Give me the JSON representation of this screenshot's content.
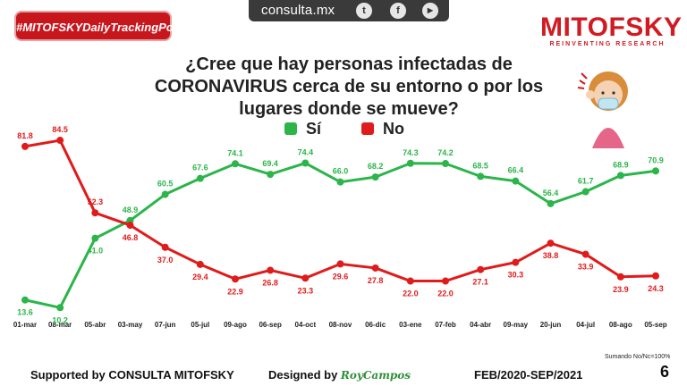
{
  "topbar": {
    "site": "consulta.mx",
    "icons": [
      "twitter-icon",
      "facebook-icon",
      "youtube-icon"
    ],
    "tw": "t",
    "fb": "f",
    "yt": "▶"
  },
  "badge": {
    "label": "#MITOFSKYDailyTrackingPoll"
  },
  "brand": {
    "name": "MITOFSKY",
    "tagline": "REINVENTING RESEARCH"
  },
  "colors": {
    "si": "#2bb54a",
    "no": "#e01b1b",
    "accent": "#c8161d"
  },
  "footer": {
    "supported": "Supported by   CONSULTA   MITOFSKY",
    "designed_prefix": "Designed by",
    "designer": "RoyCampos",
    "period": "FEB/2020-SEP/2021"
  },
  "note": "Sumando No/Nc=100%",
  "page_number": "6",
  "chart_data": {
    "type": "line",
    "title": "¿Cree que hay personas infectadas de CORONAVIRUS cerca de su entorno o por los lugares donde se mueve?",
    "categories": [
      "01-mar",
      "08-mar",
      "05-abr",
      "03-may",
      "07-jun",
      "05-jul",
      "09-ago",
      "06-sep",
      "04-oct",
      "08-nov",
      "06-dic",
      "03-ene",
      "07-feb",
      "04-abr",
      "09-may",
      "20-jun",
      "04-jul",
      "08-ago",
      "05-sep"
    ],
    "series": [
      {
        "name": "Sí",
        "color": "#2bb54a",
        "values": [
          13.6,
          10.2,
          41.0,
          48.9,
          60.5,
          67.6,
          74.1,
          69.4,
          74.4,
          66.0,
          68.2,
          74.3,
          74.2,
          68.5,
          66.4,
          56.4,
          61.7,
          68.9,
          70.9
        ],
        "labels": [
          "13.6",
          "10.2",
          "41.0",
          "48.9",
          "60.5",
          "67.6",
          "74.1",
          "69.4",
          "74.4",
          "66.0",
          "68.2",
          "74.3",
          "74.2",
          "68.5",
          "66.4",
          "56.4",
          "61.7",
          "68.9",
          "70.9"
        ]
      },
      {
        "name": "No",
        "color": "#e01b1b",
        "values": [
          81.8,
          84.5,
          52.3,
          46.8,
          37.0,
          29.4,
          22.9,
          26.8,
          23.3,
          29.6,
          27.8,
          22.0,
          22.0,
          27.1,
          30.3,
          38.8,
          33.9,
          23.9,
          24.3
        ],
        "labels": [
          "81.8",
          "84.5",
          "52.3",
          "46.8",
          "37.0",
          "29.4",
          "22.9",
          "26.8",
          "23.3",
          "29.6",
          "27.8",
          "22.0",
          "22.0",
          "27.1",
          "30.3",
          "38.8",
          "33.9",
          "23.9",
          "24.3"
        ]
      }
    ],
    "ylim": [
      0,
      100
    ],
    "xlabel": "",
    "ylabel": "",
    "grid": false,
    "legend_position": "top-center"
  }
}
